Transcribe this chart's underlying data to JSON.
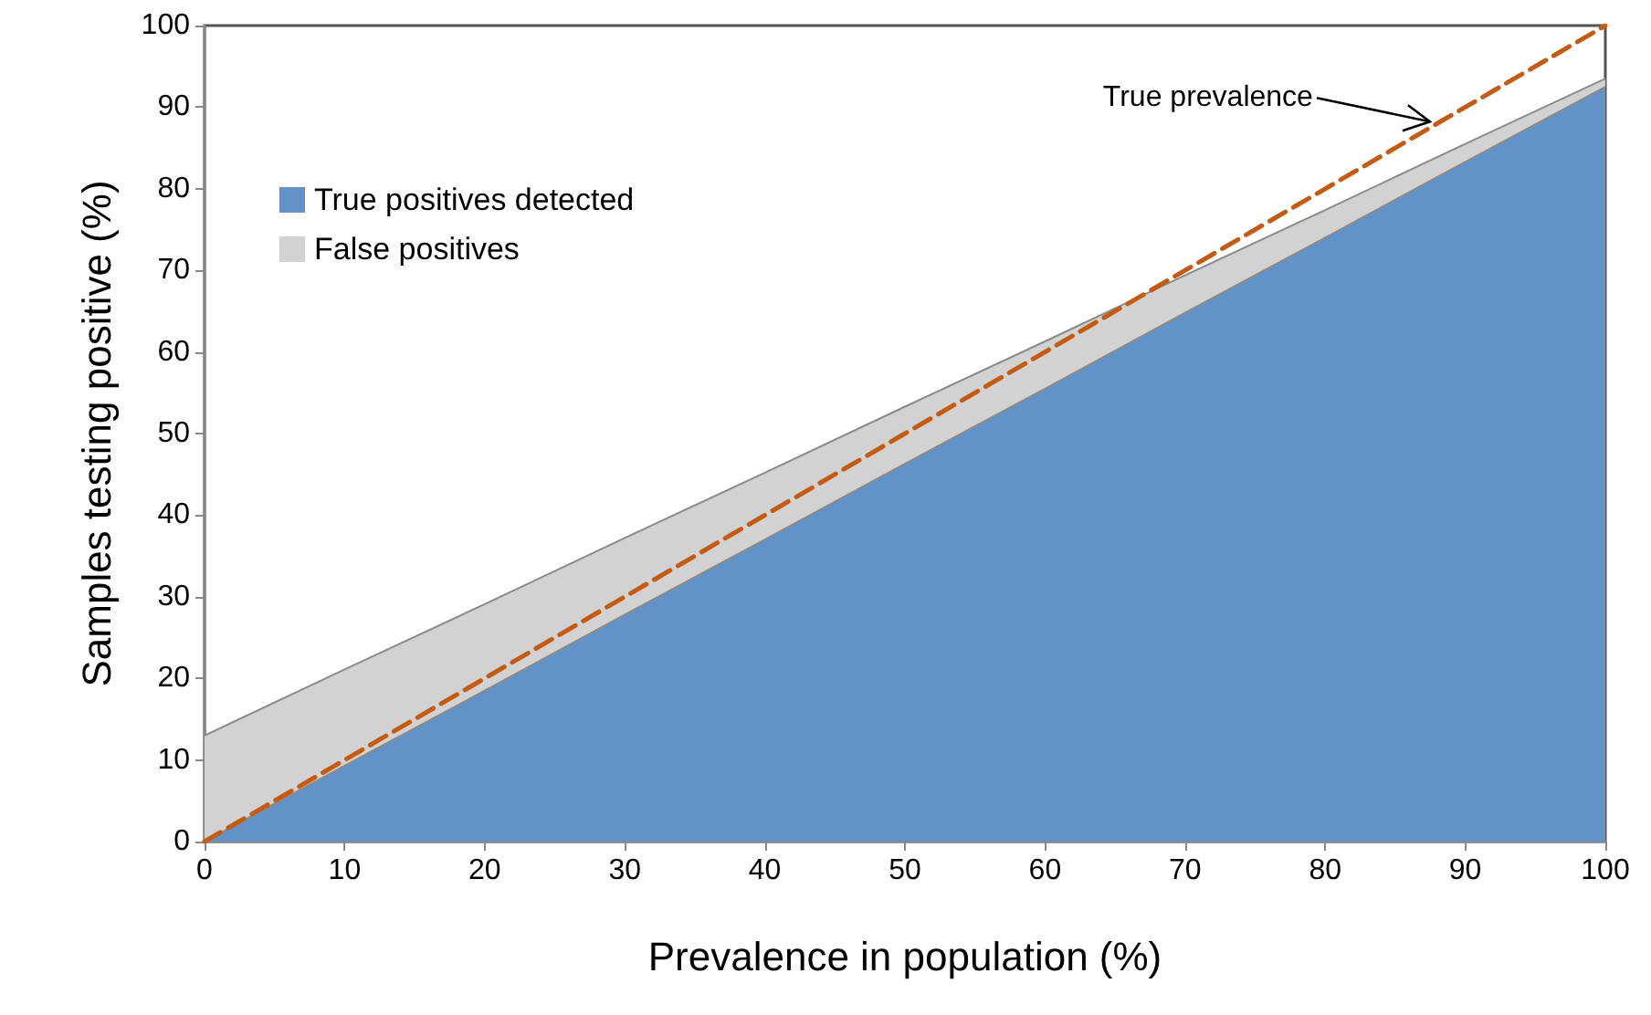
{
  "chart_data": {
    "type": "area",
    "xlabel": "Prevalence in population (%)",
    "ylabel": "Samples testing positive (%)",
    "x": [
      0,
      10,
      20,
      30,
      40,
      50,
      60,
      70,
      80,
      90,
      100
    ],
    "stacked": true,
    "series": [
      {
        "name": "True positives detected",
        "color": "#6193c8",
        "values": [
          0,
          9.3,
          18.5,
          27.8,
          37,
          46.3,
          55.5,
          64.8,
          74,
          83.3,
          92.5
        ]
      },
      {
        "name": "False positives",
        "color": "#d2d2d2",
        "values": [
          13,
          11.8,
          10.6,
          9.4,
          8.2,
          7,
          5.8,
          4.6,
          3.4,
          2.2,
          1
        ]
      },
      {
        "type": "line",
        "color": "#c55a11",
        "line_style": "dashed",
        "values": [
          0,
          10,
          20,
          30,
          40,
          50,
          60,
          70,
          80,
          90,
          100
        ]
      }
    ],
    "xlim": [
      0,
      100
    ],
    "ylim": [
      0,
      100
    ],
    "xticks": [
      0,
      10,
      20,
      30,
      40,
      50,
      60,
      70,
      80,
      90,
      100
    ],
    "yticks": [
      0,
      10,
      20,
      30,
      40,
      50,
      60,
      70,
      80,
      90,
      100
    ],
    "legend": "top left",
    "annotations": [
      {
        "text": "True prevalence",
        "x": 88,
        "y": 88
      }
    ]
  }
}
